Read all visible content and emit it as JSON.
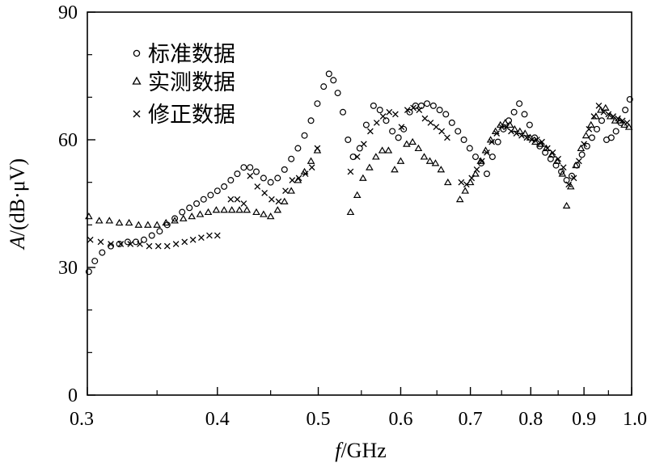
{
  "chart_data": {
    "type": "scatter",
    "xlabel_italic": "f",
    "xlabel_rest": "/GHz",
    "ylabel_italic": "A",
    "ylabel_rest": "/(dB·μV)",
    "x_scale": "log",
    "xlim": [
      0.3,
      1.0
    ],
    "ylim": [
      0,
      90
    ],
    "x_ticks": [
      0.3,
      0.4,
      0.5,
      0.6,
      0.7,
      0.8,
      0.9,
      1.0
    ],
    "x_tick_labels": [
      "0.3",
      "0.4",
      "0.5",
      "0.6",
      "0.7",
      "0.8",
      "0.9",
      "1.0"
    ],
    "y_ticks": [
      0,
      30,
      60,
      90
    ],
    "y_tick_labels": [
      "0",
      "30",
      "60",
      "90"
    ],
    "grid": false,
    "legend_position": "top-left",
    "series": [
      {
        "name": "标准数据",
        "marker": "circle",
        "points": [
          [
            0.301,
            29.0
          ],
          [
            0.305,
            31.5
          ],
          [
            0.31,
            33.5
          ],
          [
            0.316,
            35.0
          ],
          [
            0.322,
            35.5
          ],
          [
            0.328,
            36.0
          ],
          [
            0.334,
            36.0
          ],
          [
            0.34,
            36.5
          ],
          [
            0.346,
            37.5
          ],
          [
            0.352,
            38.5
          ],
          [
            0.358,
            40.0
          ],
          [
            0.364,
            41.5
          ],
          [
            0.37,
            43.0
          ],
          [
            0.376,
            44.0
          ],
          [
            0.382,
            45.0
          ],
          [
            0.388,
            46.0
          ],
          [
            0.394,
            47.0
          ],
          [
            0.4,
            48.0
          ],
          [
            0.406,
            49.0
          ],
          [
            0.412,
            50.5
          ],
          [
            0.418,
            52.0
          ],
          [
            0.424,
            53.5
          ],
          [
            0.43,
            53.5
          ],
          [
            0.436,
            52.5
          ],
          [
            0.443,
            51.0
          ],
          [
            0.45,
            50.0
          ],
          [
            0.457,
            51.0
          ],
          [
            0.464,
            53.0
          ],
          [
            0.471,
            55.5
          ],
          [
            0.478,
            58.0
          ],
          [
            0.485,
            61.0
          ],
          [
            0.492,
            64.5
          ],
          [
            0.499,
            68.5
          ],
          [
            0.506,
            72.5
          ],
          [
            0.512,
            75.5
          ],
          [
            0.517,
            74.0
          ],
          [
            0.522,
            71.0
          ],
          [
            0.528,
            66.5
          ],
          [
            0.534,
            60.0
          ],
          [
            0.54,
            56.0
          ],
          [
            0.548,
            58.0
          ],
          [
            0.556,
            63.5
          ],
          [
            0.565,
            68.0
          ],
          [
            0.573,
            67.0
          ],
          [
            0.581,
            64.5
          ],
          [
            0.589,
            62.0
          ],
          [
            0.597,
            60.5
          ],
          [
            0.604,
            62.5
          ],
          [
            0.612,
            66.5
          ],
          [
            0.62,
            68.0
          ],
          [
            0.628,
            68.0
          ],
          [
            0.636,
            68.5
          ],
          [
            0.645,
            68.0
          ],
          [
            0.654,
            67.0
          ],
          [
            0.663,
            66.0
          ],
          [
            0.672,
            64.0
          ],
          [
            0.681,
            62.0
          ],
          [
            0.69,
            60.0
          ],
          [
            0.699,
            58.0
          ],
          [
            0.708,
            56.0
          ],
          [
            0.717,
            54.5
          ],
          [
            0.726,
            52.0
          ],
          [
            0.735,
            56.0
          ],
          [
            0.744,
            59.5
          ],
          [
            0.753,
            62.5
          ],
          [
            0.762,
            64.5
          ],
          [
            0.771,
            66.5
          ],
          [
            0.78,
            68.5
          ],
          [
            0.789,
            66.0
          ],
          [
            0.798,
            63.5
          ],
          [
            0.807,
            60.5
          ],
          [
            0.816,
            58.5
          ],
          [
            0.826,
            57.0
          ],
          [
            0.836,
            55.5
          ],
          [
            0.846,
            54.0
          ],
          [
            0.856,
            52.5
          ],
          [
            0.866,
            50.5
          ],
          [
            0.876,
            51.5
          ],
          [
            0.886,
            54.0
          ],
          [
            0.896,
            56.5
          ],
          [
            0.906,
            58.5
          ],
          [
            0.916,
            60.5
          ],
          [
            0.926,
            62.5
          ],
          [
            0.936,
            64.5
          ],
          [
            0.946,
            60.0
          ],
          [
            0.956,
            60.5
          ],
          [
            0.966,
            62.0
          ],
          [
            0.976,
            64.0
          ],
          [
            0.986,
            67.0
          ],
          [
            0.996,
            69.5
          ]
        ]
      },
      {
        "name": "实测数据",
        "marker": "triangle",
        "points": [
          [
            0.301,
            42.0
          ],
          [
            0.308,
            41.0
          ],
          [
            0.315,
            41.0
          ],
          [
            0.322,
            40.5
          ],
          [
            0.329,
            40.5
          ],
          [
            0.336,
            40.0
          ],
          [
            0.343,
            40.0
          ],
          [
            0.35,
            40.0
          ],
          [
            0.357,
            40.5
          ],
          [
            0.364,
            41.0
          ],
          [
            0.371,
            41.5
          ],
          [
            0.378,
            42.0
          ],
          [
            0.385,
            42.5
          ],
          [
            0.392,
            43.0
          ],
          [
            0.399,
            43.5
          ],
          [
            0.406,
            43.5
          ],
          [
            0.413,
            43.5
          ],
          [
            0.42,
            43.5
          ],
          [
            0.427,
            43.5
          ],
          [
            0.436,
            43.0
          ],
          [
            0.443,
            42.5
          ],
          [
            0.45,
            42.0
          ],
          [
            0.457,
            43.5
          ],
          [
            0.464,
            45.5
          ],
          [
            0.471,
            48.0
          ],
          [
            0.478,
            50.5
          ],
          [
            0.485,
            52.5
          ],
          [
            0.492,
            55.0
          ],
          [
            0.499,
            57.5
          ],
          [
            0.537,
            43.0
          ],
          [
            0.545,
            47.0
          ],
          [
            0.552,
            51.0
          ],
          [
            0.56,
            53.5
          ],
          [
            0.568,
            56.0
          ],
          [
            0.576,
            57.5
          ],
          [
            0.584,
            57.5
          ],
          [
            0.592,
            53.0
          ],
          [
            0.6,
            55.0
          ],
          [
            0.608,
            59.0
          ],
          [
            0.616,
            59.5
          ],
          [
            0.624,
            58.0
          ],
          [
            0.632,
            56.0
          ],
          [
            0.64,
            55.0
          ],
          [
            0.648,
            54.5
          ],
          [
            0.656,
            53.0
          ],
          [
            0.666,
            50.0
          ],
          [
            0.684,
            46.0
          ],
          [
            0.692,
            48.0
          ],
          [
            0.7,
            50.0
          ],
          [
            0.708,
            52.0
          ],
          [
            0.716,
            55.0
          ],
          [
            0.724,
            57.5
          ],
          [
            0.732,
            60.0
          ],
          [
            0.74,
            62.0
          ],
          [
            0.748,
            63.5
          ],
          [
            0.756,
            64.0
          ],
          [
            0.764,
            63.5
          ],
          [
            0.772,
            62.5
          ],
          [
            0.781,
            62.0
          ],
          [
            0.79,
            61.5
          ],
          [
            0.799,
            60.5
          ],
          [
            0.808,
            59.5
          ],
          [
            0.818,
            59.0
          ],
          [
            0.828,
            58.0
          ],
          [
            0.838,
            56.5
          ],
          [
            0.848,
            55.0
          ],
          [
            0.858,
            52.0
          ],
          [
            0.866,
            44.5
          ],
          [
            0.874,
            49.0
          ],
          [
            0.884,
            54.0
          ],
          [
            0.894,
            58.0
          ],
          [
            0.904,
            61.0
          ],
          [
            0.914,
            63.5
          ],
          [
            0.924,
            65.5
          ],
          [
            0.934,
            67.0
          ],
          [
            0.944,
            67.5
          ],
          [
            0.954,
            65.5
          ],
          [
            0.964,
            64.5
          ],
          [
            0.974,
            64.5
          ],
          [
            0.984,
            63.5
          ],
          [
            0.994,
            63.0
          ]
        ]
      },
      {
        "name": "修正数据",
        "marker": "cross",
        "points": [
          [
            0.302,
            36.5
          ],
          [
            0.309,
            36.0
          ],
          [
            0.316,
            35.5
          ],
          [
            0.323,
            35.5
          ],
          [
            0.33,
            35.5
          ],
          [
            0.337,
            35.5
          ],
          [
            0.344,
            35.0
          ],
          [
            0.351,
            35.0
          ],
          [
            0.358,
            35.0
          ],
          [
            0.365,
            35.5
          ],
          [
            0.372,
            36.0
          ],
          [
            0.379,
            36.5
          ],
          [
            0.386,
            37.0
          ],
          [
            0.393,
            37.5
          ],
          [
            0.4,
            37.5
          ],
          [
            0.412,
            46.0
          ],
          [
            0.418,
            46.0
          ],
          [
            0.424,
            45.0
          ],
          [
            0.43,
            51.5
          ],
          [
            0.437,
            49.0
          ],
          [
            0.444,
            47.5
          ],
          [
            0.451,
            46.0
          ],
          [
            0.458,
            45.5
          ],
          [
            0.465,
            48.0
          ],
          [
            0.472,
            50.5
          ],
          [
            0.479,
            51.0
          ],
          [
            0.486,
            52.0
          ],
          [
            0.493,
            53.5
          ],
          [
            0.499,
            58.0
          ],
          [
            0.537,
            52.5
          ],
          [
            0.545,
            56.0
          ],
          [
            0.553,
            59.0
          ],
          [
            0.561,
            62.0
          ],
          [
            0.569,
            64.0
          ],
          [
            0.577,
            65.5
          ],
          [
            0.585,
            66.5
          ],
          [
            0.593,
            66.0
          ],
          [
            0.601,
            63.0
          ],
          [
            0.609,
            67.0
          ],
          [
            0.617,
            67.5
          ],
          [
            0.625,
            67.0
          ],
          [
            0.633,
            65.0
          ],
          [
            0.641,
            64.0
          ],
          [
            0.649,
            63.0
          ],
          [
            0.657,
            62.0
          ],
          [
            0.665,
            60.5
          ],
          [
            0.686,
            50.0
          ],
          [
            0.694,
            49.5
          ],
          [
            0.702,
            51.0
          ],
          [
            0.71,
            53.0
          ],
          [
            0.718,
            55.0
          ],
          [
            0.726,
            57.0
          ],
          [
            0.734,
            59.5
          ],
          [
            0.742,
            61.5
          ],
          [
            0.75,
            63.0
          ],
          [
            0.758,
            63.0
          ],
          [
            0.766,
            62.0
          ],
          [
            0.775,
            61.5
          ],
          [
            0.784,
            61.0
          ],
          [
            0.793,
            60.5
          ],
          [
            0.802,
            60.0
          ],
          [
            0.811,
            60.0
          ],
          [
            0.82,
            59.5
          ],
          [
            0.83,
            58.0
          ],
          [
            0.84,
            57.0
          ],
          [
            0.85,
            55.5
          ],
          [
            0.86,
            53.5
          ],
          [
            0.87,
            49.5
          ],
          [
            0.88,
            51.0
          ],
          [
            0.89,
            55.0
          ],
          [
            0.9,
            59.0
          ],
          [
            0.91,
            62.5
          ],
          [
            0.92,
            65.5
          ],
          [
            0.93,
            68.0
          ],
          [
            0.94,
            66.5
          ],
          [
            0.95,
            66.0
          ],
          [
            0.96,
            65.5
          ],
          [
            0.97,
            65.0
          ],
          [
            0.98,
            64.5
          ],
          [
            0.99,
            64.0
          ]
        ]
      }
    ]
  }
}
